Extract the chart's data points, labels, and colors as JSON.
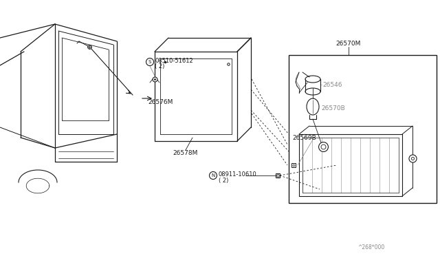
{
  "bg_color": "#ffffff",
  "line_color": "#1a1a1a",
  "gray_color": "#888888",
  "fig_width": 6.4,
  "fig_height": 3.72,
  "footer": "^268*000",
  "s_symbol": "S",
  "n_symbol": "N",
  "labels": {
    "08510_51612": "08510-51612",
    "08510_51612_2": "( 2)",
    "26576M": "26576M",
    "26578M": "26578M",
    "08911_10610": "08911-10610",
    "08911_10610_2": "( 2)",
    "26570M": "26570M",
    "26546": "26546",
    "26570B": "26570B",
    "26569B": "26569B"
  }
}
